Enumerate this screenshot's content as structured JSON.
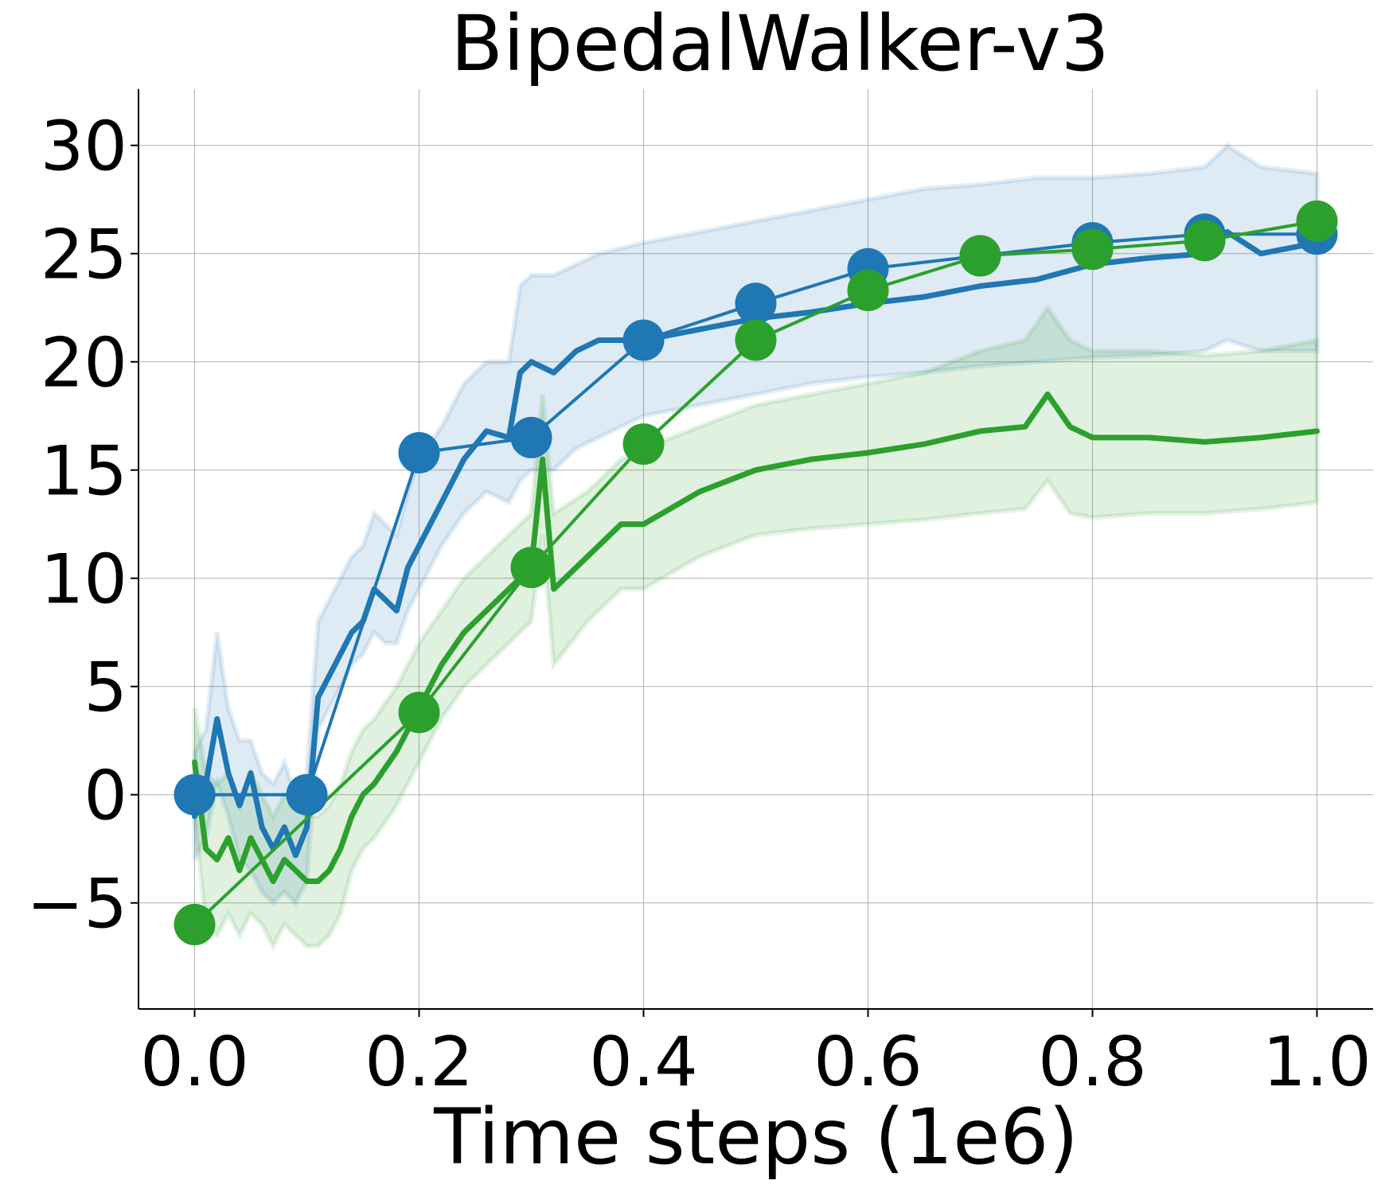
{
  "chart_data": {
    "type": "line",
    "title": "BipedalWalker-v3",
    "xlabel": "Time steps (1e6)",
    "ylabel": "",
    "xlim": [
      -0.05,
      1.05
    ],
    "ylim": [
      -9.9,
      32.6
    ],
    "grid": true,
    "legend": "none",
    "xticks": [
      0.0,
      0.2,
      0.4,
      0.6,
      0.8,
      1.0
    ],
    "xtick_labels": [
      "0.0",
      "0.2",
      "0.4",
      "0.6",
      "0.8",
      "1.0"
    ],
    "yticks": [
      -5,
      0,
      5,
      10,
      15,
      20,
      25,
      30
    ],
    "ytick_labels": [
      "−5",
      "0",
      "5",
      "10",
      "15",
      "20",
      "25",
      "30"
    ],
    "series": [
      {
        "name": "blue",
        "color": "#1f77b4",
        "curve_x": [
          0.0,
          0.01,
          0.02,
          0.03,
          0.04,
          0.05,
          0.06,
          0.07,
          0.08,
          0.09,
          0.1,
          0.11,
          0.12,
          0.13,
          0.14,
          0.15,
          0.16,
          0.17,
          0.18,
          0.19,
          0.2,
          0.22,
          0.24,
          0.26,
          0.28,
          0.29,
          0.3,
          0.32,
          0.34,
          0.36,
          0.4,
          0.45,
          0.5,
          0.55,
          0.6,
          0.65,
          0.7,
          0.75,
          0.8,
          0.85,
          0.9,
          0.92,
          0.95,
          1.0
        ],
        "curve_y": [
          -1.0,
          0.5,
          3.5,
          1.0,
          -0.5,
          1.0,
          -1.5,
          -2.5,
          -1.5,
          -2.8,
          -1.5,
          4.5,
          5.5,
          6.5,
          7.5,
          8.0,
          9.5,
          9.0,
          8.5,
          10.5,
          11.5,
          13.5,
          15.5,
          16.8,
          16.5,
          19.5,
          20.0,
          19.5,
          20.5,
          21.0,
          21.0,
          21.5,
          22.0,
          22.3,
          22.7,
          23.0,
          23.5,
          23.8,
          24.5,
          24.8,
          25.0,
          26.0,
          25.0,
          25.5
        ],
        "band_low": [
          -3.0,
          -2.0,
          0.5,
          -1.0,
          -3.0,
          -3.5,
          -4.5,
          -5.0,
          -4.5,
          -5.0,
          -4.0,
          3.0,
          4.0,
          5.0,
          6.0,
          6.5,
          7.5,
          7.0,
          7.0,
          8.5,
          9.5,
          11.5,
          13.0,
          14.0,
          13.5,
          14.5,
          15.0,
          15.0,
          16.0,
          16.5,
          17.5,
          18.0,
          18.5,
          19.0,
          19.3,
          19.5,
          19.8,
          20.0,
          20.2,
          20.3,
          20.5,
          21.0,
          20.5,
          20.5
        ],
        "band_high": [
          2.0,
          3.0,
          7.5,
          4.0,
          2.5,
          2.5,
          1.0,
          0.5,
          1.5,
          0.0,
          1.0,
          8.0,
          9.0,
          10.0,
          11.0,
          11.5,
          13.0,
          12.5,
          12.0,
          14.0,
          15.5,
          17.0,
          19.0,
          20.0,
          20.0,
          23.5,
          24.0,
          24.0,
          24.5,
          25.0,
          25.5,
          26.0,
          26.5,
          27.0,
          27.5,
          28.0,
          28.2,
          28.5,
          28.5,
          28.7,
          29.0,
          30.0,
          29.0,
          28.7
        ],
        "markers_x": [
          0.0,
          0.1,
          0.2,
          0.3,
          0.4,
          0.5,
          0.6,
          0.7,
          0.8,
          0.9,
          1.0
        ],
        "markers_y": [
          0.0,
          0.0,
          15.8,
          16.5,
          21.0,
          22.7,
          24.3,
          24.9,
          25.5,
          25.9,
          25.9
        ]
      },
      {
        "name": "green",
        "color": "#2ca02c",
        "curve_x": [
          0.0,
          0.01,
          0.02,
          0.03,
          0.04,
          0.05,
          0.06,
          0.07,
          0.08,
          0.09,
          0.1,
          0.11,
          0.12,
          0.13,
          0.14,
          0.15,
          0.16,
          0.18,
          0.2,
          0.22,
          0.24,
          0.26,
          0.28,
          0.3,
          0.31,
          0.32,
          0.35,
          0.38,
          0.4,
          0.45,
          0.5,
          0.55,
          0.6,
          0.65,
          0.7,
          0.74,
          0.76,
          0.78,
          0.8,
          0.85,
          0.9,
          0.95,
          1.0
        ],
        "curve_y": [
          1.5,
          -2.5,
          -3.0,
          -2.0,
          -3.5,
          -2.0,
          -3.0,
          -4.0,
          -3.0,
          -3.5,
          -4.0,
          -4.0,
          -3.5,
          -2.5,
          -1.0,
          0.0,
          0.5,
          2.0,
          4.0,
          6.0,
          7.5,
          8.5,
          9.5,
          10.5,
          15.5,
          9.5,
          11.0,
          12.5,
          12.5,
          14.0,
          15.0,
          15.5,
          15.8,
          16.2,
          16.8,
          17.0,
          18.5,
          17.0,
          16.5,
          16.5,
          16.3,
          16.5,
          16.8
        ],
        "band_low": [
          -1.0,
          -6.0,
          -6.5,
          -5.5,
          -6.5,
          -5.5,
          -6.0,
          -7.0,
          -6.0,
          -6.5,
          -7.0,
          -7.0,
          -6.5,
          -5.5,
          -3.5,
          -2.5,
          -2.0,
          -0.5,
          1.5,
          3.5,
          5.0,
          6.0,
          7.0,
          8.0,
          12.0,
          6.0,
          8.0,
          9.5,
          9.5,
          11.0,
          12.0,
          12.3,
          12.5,
          12.7,
          13.0,
          13.2,
          14.5,
          13.0,
          12.8,
          13.0,
          13.0,
          13.2,
          13.5
        ],
        "band_high": [
          4.0,
          1.0,
          0.5,
          1.0,
          -0.5,
          1.0,
          0.0,
          -1.0,
          0.0,
          -0.5,
          -1.0,
          -1.0,
          -0.5,
          0.5,
          2.0,
          3.0,
          3.5,
          5.0,
          7.0,
          8.5,
          10.0,
          11.0,
          12.0,
          13.0,
          18.5,
          13.0,
          14.0,
          15.5,
          16.0,
          17.0,
          18.0,
          18.5,
          19.0,
          19.5,
          20.5,
          21.0,
          22.5,
          21.0,
          20.5,
          20.5,
          20.3,
          20.5,
          21.0
        ],
        "markers_x": [
          0.0,
          0.2,
          0.3,
          0.4,
          0.5,
          0.6,
          0.7,
          0.8,
          0.9,
          1.0
        ],
        "markers_y": [
          -6.0,
          3.8,
          10.5,
          16.2,
          21.0,
          23.3,
          24.9,
          25.2,
          25.6,
          26.5
        ]
      }
    ]
  }
}
